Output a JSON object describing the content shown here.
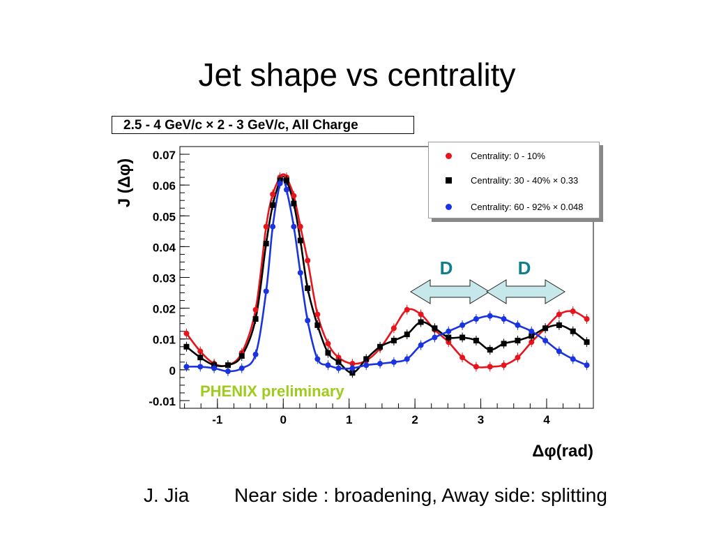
{
  "slide": {
    "title": "Jet shape vs centrality",
    "footer_author": "J. Jia",
    "footer_text": "Near side : broadening, Away side: splitting"
  },
  "chart_data": {
    "type": "scatter",
    "title": "2.5 - 4 GeV/c × 2 - 3 GeV/c,  All Charge",
    "xlabel": "Δφ(rad)",
    "ylabel": "J (Δφ)",
    "xlim": [
      -1.57,
      4.71
    ],
    "ylim": [
      -0.0125,
      0.0725
    ],
    "xticks": [
      -1,
      0,
      1,
      2,
      3,
      4
    ],
    "xtick_labels": [
      "-1",
      "0",
      "1",
      "2",
      "3",
      "4"
    ],
    "yticks": [
      -0.01,
      0,
      0.01,
      0.02,
      0.03,
      0.04,
      0.05,
      0.06,
      0.07
    ],
    "ytick_labels": [
      "-0.01",
      "0",
      "0.01",
      "0.02",
      "0.03",
      "0.04",
      "0.05",
      "0.06",
      "0.07"
    ],
    "legend_position": "top-right",
    "annotations": {
      "watermark": "PHENIX preliminary",
      "arrow_labels": [
        "D",
        "D"
      ]
    },
    "series": [
      {
        "name": "Centrality:  0 - 10%",
        "color": "#e8141b",
        "marker": "circle",
        "x": [
          -1.47,
          -1.26,
          -1.05,
          -0.84,
          -0.63,
          -0.42,
          -0.26,
          -0.16,
          -0.05,
          0.05,
          0.16,
          0.26,
          0.37,
          0.52,
          0.68,
          0.84,
          1.05,
          1.26,
          1.47,
          1.68,
          1.88,
          2.09,
          2.3,
          2.51,
          2.72,
          2.93,
          3.14,
          3.35,
          3.56,
          3.77,
          3.98,
          4.19,
          4.4,
          4.61
        ],
        "y": [
          0.0118,
          0.006,
          0.002,
          0.0015,
          0.0055,
          0.0195,
          0.0465,
          0.057,
          0.0625,
          0.0625,
          0.0565,
          0.0465,
          0.0355,
          0.018,
          0.0085,
          0.004,
          0.002,
          0.003,
          0.007,
          0.0135,
          0.0195,
          0.018,
          0.013,
          0.009,
          0.004,
          0.001,
          0.001,
          0.0015,
          0.004,
          0.009,
          0.0135,
          0.018,
          0.019,
          0.0165
        ],
        "fit_peak": [
          0.0635,
          0.0198
        ]
      },
      {
        "name": "Centrality: 30 - 40% × 0.33",
        "color": "#000000",
        "marker": "square",
        "x": [
          -1.47,
          -1.26,
          -1.05,
          -0.84,
          -0.63,
          -0.42,
          -0.26,
          -0.16,
          -0.05,
          0.05,
          0.16,
          0.26,
          0.37,
          0.52,
          0.68,
          0.84,
          1.05,
          1.26,
          1.47,
          1.68,
          1.88,
          2.09,
          2.3,
          2.51,
          2.72,
          2.93,
          3.14,
          3.35,
          3.56,
          3.77,
          3.98,
          4.19,
          4.4,
          4.61
        ],
        "y": [
          0.0075,
          0.004,
          0.0015,
          0.0015,
          0.0045,
          0.0165,
          0.041,
          0.0535,
          0.0615,
          0.0615,
          0.054,
          0.042,
          0.0265,
          0.0145,
          0.0055,
          0.0025,
          -0.001,
          0.0035,
          0.0075,
          0.0095,
          0.0115,
          0.0155,
          0.0135,
          0.0105,
          0.0105,
          0.0095,
          0.0065,
          0.0085,
          0.0095,
          0.011,
          0.0135,
          0.0145,
          0.0125,
          0.009
        ],
        "fit_peak": [
          0.0628,
          0.0135
        ]
      },
      {
        "name": "Centrality: 60 - 92% × 0.048",
        "color": "#1a33e0",
        "marker": "circle",
        "x": [
          -1.47,
          -1.26,
          -1.05,
          -0.84,
          -0.63,
          -0.42,
          -0.26,
          -0.16,
          -0.05,
          0.05,
          0.16,
          0.26,
          0.37,
          0.52,
          0.68,
          0.84,
          1.05,
          1.26,
          1.47,
          1.68,
          1.88,
          2.09,
          2.3,
          2.51,
          2.72,
          2.93,
          3.14,
          3.35,
          3.56,
          3.77,
          3.98,
          4.19,
          4.4,
          4.61
        ],
        "y": [
          0.001,
          0.001,
          0.0005,
          -0.0005,
          0.0005,
          0.005,
          0.0255,
          0.0465,
          0.0605,
          0.0585,
          0.0465,
          0.0315,
          0.016,
          0.0035,
          0.0015,
          0.0005,
          0.0005,
          0.0015,
          0.002,
          0.0025,
          0.0035,
          0.008,
          0.0105,
          0.0125,
          0.0145,
          0.0165,
          0.0175,
          0.0165,
          0.0145,
          0.0125,
          0.0095,
          0.006,
          0.0035,
          0.0015
        ],
        "fit_peak": [
          0.0618,
          0.0178
        ]
      }
    ]
  }
}
